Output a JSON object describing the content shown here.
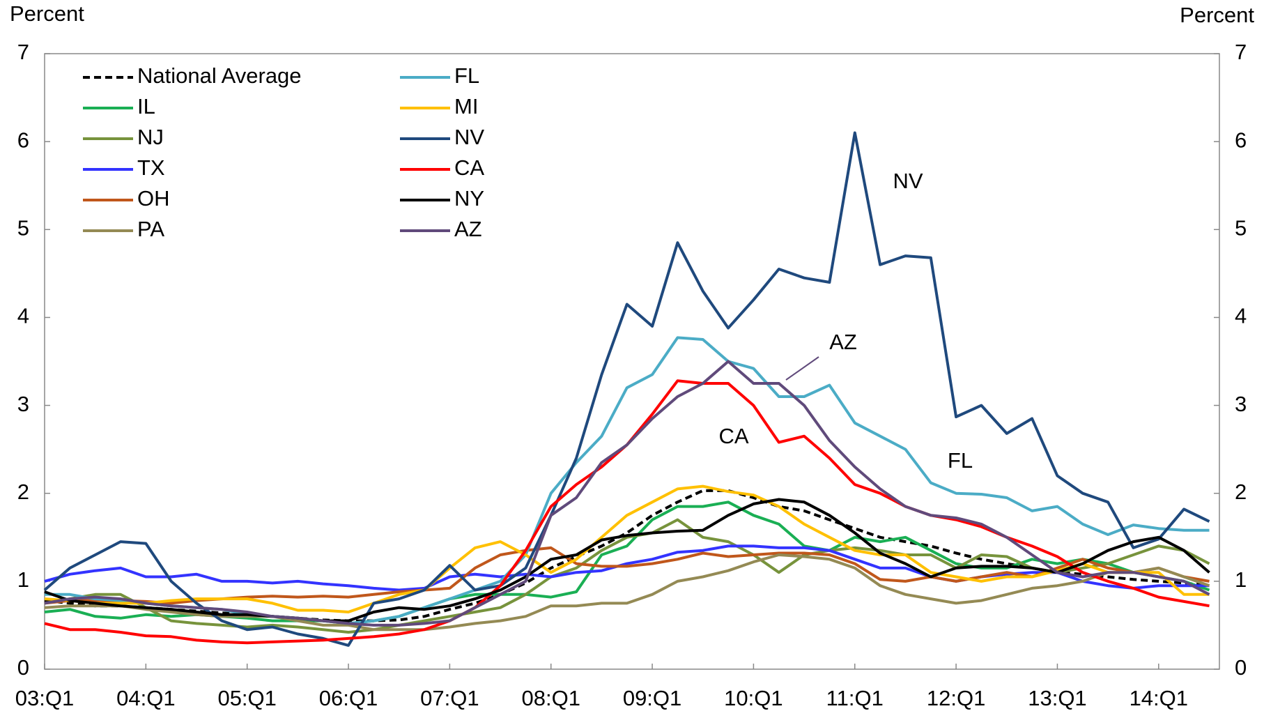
{
  "chart_data": {
    "type": "line",
    "y_label": "Percent",
    "y2_label": "Percent",
    "categories": [
      "03:Q1",
      null,
      null,
      null,
      "04:Q1",
      null,
      null,
      null,
      "05:Q1",
      null,
      null,
      null,
      "06:Q1",
      null,
      null,
      null,
      "07:Q1",
      null,
      null,
      null,
      "08:Q1",
      null,
      null,
      null,
      "09:Q1",
      null,
      null,
      null,
      "10:Q1",
      null,
      null,
      null,
      "11:Q1",
      null,
      null,
      null,
      "12:Q1",
      null,
      null,
      null,
      "13:Q1",
      null,
      null,
      null,
      "14:Q1",
      null,
      null
    ],
    "ylim": [
      0,
      7
    ],
    "yticks": [
      0,
      1,
      2,
      3,
      4,
      5,
      6,
      7
    ],
    "y2lim": [
      0,
      7
    ],
    "y2ticks": [
      0,
      1,
      2,
      3,
      4,
      5,
      6,
      7
    ],
    "grid": false,
    "legend": "upper left",
    "series": [
      {
        "name": "National Average",
        "color": "#000000",
        "dash": true,
        "values": [
          0.78,
          0.75,
          0.72,
          0.72,
          0.7,
          0.68,
          0.66,
          0.64,
          0.62,
          0.6,
          0.58,
          0.56,
          0.55,
          0.55,
          0.56,
          0.6,
          0.68,
          0.75,
          0.85,
          0.98,
          1.15,
          1.28,
          1.4,
          1.55,
          1.75,
          1.9,
          2.03,
          2.03,
          1.95,
          1.85,
          1.8,
          1.7,
          1.6,
          1.5,
          1.45,
          1.4,
          1.32,
          1.25,
          1.2,
          1.15,
          1.1,
          1.08,
          1.05,
          1.02,
          1.0,
          0.98,
          0.95
        ]
      },
      {
        "name": "IL",
        "color": "#1aaf54",
        "values": [
          0.65,
          0.68,
          0.6,
          0.58,
          0.62,
          0.6,
          0.62,
          0.6,
          0.58,
          0.55,
          0.55,
          0.55,
          0.52,
          0.55,
          0.6,
          0.7,
          0.8,
          0.85,
          0.85,
          0.85,
          0.82,
          0.88,
          1.3,
          1.4,
          1.7,
          1.85,
          1.85,
          1.9,
          1.75,
          1.65,
          1.4,
          1.35,
          1.5,
          1.45,
          1.5,
          1.35,
          1.2,
          1.15,
          1.15,
          1.25,
          1.2,
          1.25,
          1.2,
          1.1,
          1.05,
          1.0,
          0.9
        ]
      },
      {
        "name": "NJ",
        "color": "#77933c",
        "values": [
          0.75,
          0.8,
          0.85,
          0.85,
          0.7,
          0.55,
          0.52,
          0.5,
          0.48,
          0.5,
          0.48,
          0.45,
          0.42,
          0.45,
          0.5,
          0.55,
          0.6,
          0.65,
          0.7,
          0.85,
          1.05,
          1.15,
          1.35,
          1.5,
          1.55,
          1.7,
          1.5,
          1.45,
          1.3,
          1.1,
          1.3,
          1.35,
          1.38,
          1.35,
          1.3,
          1.3,
          1.15,
          1.3,
          1.28,
          1.15,
          1.1,
          1.15,
          1.2,
          1.3,
          1.4,
          1.35,
          1.2
        ]
      },
      {
        "name": "TX",
        "color": "#3333ff",
        "values": [
          1.0,
          1.08,
          1.12,
          1.15,
          1.05,
          1.05,
          1.08,
          1.0,
          1.0,
          0.98,
          1.0,
          0.97,
          0.95,
          0.92,
          0.9,
          0.92,
          1.05,
          1.08,
          1.05,
          1.08,
          1.05,
          1.1,
          1.12,
          1.2,
          1.25,
          1.33,
          1.35,
          1.4,
          1.4,
          1.38,
          1.38,
          1.35,
          1.25,
          1.15,
          1.15,
          1.05,
          1.0,
          1.05,
          1.08,
          1.1,
          1.1,
          1.0,
          0.95,
          0.92,
          0.95,
          0.95,
          0.95
        ]
      },
      {
        "name": "OH",
        "color": "#c0571b",
        "values": [
          0.75,
          0.78,
          0.78,
          0.78,
          0.77,
          0.75,
          0.78,
          0.8,
          0.82,
          0.83,
          0.82,
          0.83,
          0.82,
          0.85,
          0.88,
          0.9,
          0.92,
          1.15,
          1.3,
          1.35,
          1.38,
          1.2,
          1.17,
          1.17,
          1.2,
          1.25,
          1.32,
          1.28,
          1.3,
          1.32,
          1.32,
          1.3,
          1.2,
          1.02,
          1.0,
          1.05,
          1.0,
          1.05,
          1.1,
          1.05,
          1.15,
          1.25,
          1.15,
          1.1,
          1.15,
          1.05,
          1.0
        ]
      },
      {
        "name": "PA",
        "color": "#948a54",
        "values": [
          0.7,
          0.72,
          0.72,
          0.72,
          0.68,
          0.65,
          0.62,
          0.6,
          0.6,
          0.6,
          0.55,
          0.5,
          0.5,
          0.45,
          0.45,
          0.45,
          0.48,
          0.52,
          0.55,
          0.6,
          0.72,
          0.72,
          0.75,
          0.75,
          0.85,
          1.0,
          1.05,
          1.12,
          1.22,
          1.3,
          1.28,
          1.25,
          1.15,
          0.95,
          0.85,
          0.8,
          0.75,
          0.78,
          0.85,
          0.92,
          0.95,
          1.0,
          1.1,
          1.1,
          1.15,
          1.05,
          0.95
        ]
      },
      {
        "name": "FL",
        "color": "#4bacc6",
        "values": [
          0.85,
          0.85,
          0.8,
          0.78,
          0.75,
          0.72,
          0.7,
          0.68,
          0.62,
          0.6,
          0.58,
          0.55,
          0.52,
          0.55,
          0.6,
          0.7,
          0.8,
          0.9,
          1.0,
          1.3,
          2.0,
          2.35,
          2.65,
          3.2,
          3.35,
          3.77,
          3.75,
          3.5,
          3.42,
          3.1,
          3.1,
          3.23,
          2.8,
          2.65,
          2.5,
          2.12,
          2.0,
          1.99,
          1.95,
          1.8,
          1.85,
          1.65,
          1.53,
          1.64,
          1.6,
          1.58,
          1.58
        ]
      },
      {
        "name": "MI",
        "color": "#ffc000",
        "values": [
          0.8,
          0.78,
          0.75,
          0.75,
          0.75,
          0.78,
          0.8,
          0.8,
          0.8,
          0.75,
          0.67,
          0.67,
          0.65,
          0.75,
          0.85,
          0.9,
          1.15,
          1.38,
          1.45,
          1.3,
          1.1,
          1.25,
          1.5,
          1.75,
          1.9,
          2.05,
          2.08,
          2.02,
          1.98,
          1.85,
          1.65,
          1.5,
          1.35,
          1.3,
          1.3,
          1.1,
          1.05,
          1.0,
          1.05,
          1.05,
          1.12,
          1.2,
          1.1,
          1.1,
          1.1,
          0.85,
          0.85
        ]
      },
      {
        "name": "NV",
        "color": "#1f497d",
        "values": [
          0.9,
          1.15,
          1.3,
          1.45,
          1.43,
          1.0,
          0.75,
          0.55,
          0.45,
          0.48,
          0.4,
          0.35,
          0.27,
          0.75,
          0.8,
          0.9,
          1.18,
          0.9,
          0.95,
          1.15,
          1.75,
          2.4,
          3.35,
          4.15,
          3.9,
          4.85,
          4.3,
          3.88,
          4.2,
          4.55,
          4.45,
          4.4,
          6.1,
          4.6,
          4.7,
          4.68,
          2.87,
          3.0,
          2.68,
          2.85,
          2.2,
          2.0,
          1.9,
          1.38,
          1.48,
          1.82,
          1.68
        ]
      },
      {
        "name": "CA",
        "color": "#ff0000",
        "values": [
          0.52,
          0.45,
          0.45,
          0.42,
          0.38,
          0.37,
          0.33,
          0.31,
          0.3,
          0.31,
          0.32,
          0.33,
          0.35,
          0.37,
          0.4,
          0.45,
          0.55,
          0.7,
          0.95,
          1.35,
          1.85,
          2.1,
          2.3,
          2.55,
          2.9,
          3.28,
          3.25,
          3.25,
          3.0,
          2.58,
          2.65,
          2.4,
          2.1,
          2.0,
          1.85,
          1.75,
          1.7,
          1.62,
          1.5,
          1.4,
          1.28,
          1.1,
          1.0,
          0.92,
          0.82,
          0.77,
          0.72
        ]
      },
      {
        "name": "NY",
        "color": "#000000",
        "values": [
          0.88,
          0.78,
          0.75,
          0.72,
          0.7,
          0.68,
          0.65,
          0.62,
          0.62,
          0.6,
          0.58,
          0.55,
          0.55,
          0.65,
          0.7,
          0.68,
          0.72,
          0.8,
          0.9,
          1.05,
          1.25,
          1.3,
          1.47,
          1.52,
          1.55,
          1.57,
          1.58,
          1.75,
          1.88,
          1.93,
          1.9,
          1.75,
          1.55,
          1.32,
          1.2,
          1.05,
          1.15,
          1.17,
          1.17,
          1.15,
          1.1,
          1.2,
          1.35,
          1.45,
          1.5,
          1.35,
          1.1
        ]
      },
      {
        "name": "AZ",
        "color": "#604a7b",
        "values": [
          0.75,
          0.8,
          0.82,
          0.8,
          0.75,
          0.72,
          0.7,
          0.68,
          0.65,
          0.6,
          0.58,
          0.55,
          0.52,
          0.5,
          0.5,
          0.52,
          0.55,
          0.7,
          0.85,
          1.0,
          1.75,
          1.95,
          2.35,
          2.55,
          2.85,
          3.1,
          3.25,
          3.5,
          3.25,
          3.25,
          3.0,
          2.6,
          2.3,
          2.05,
          1.85,
          1.75,
          1.72,
          1.65,
          1.5,
          1.3,
          1.1,
          1.05,
          1.1,
          1.1,
          1.05,
          1.0,
          0.85
        ]
      }
    ],
    "annotations": [
      {
        "text": "NV",
        "color": "#1f497d"
      },
      {
        "text": "AZ",
        "color": "#604a7b"
      },
      {
        "text": "CA",
        "color": "#ff0000"
      },
      {
        "text": "FL",
        "color": "#4bacc6"
      }
    ]
  }
}
